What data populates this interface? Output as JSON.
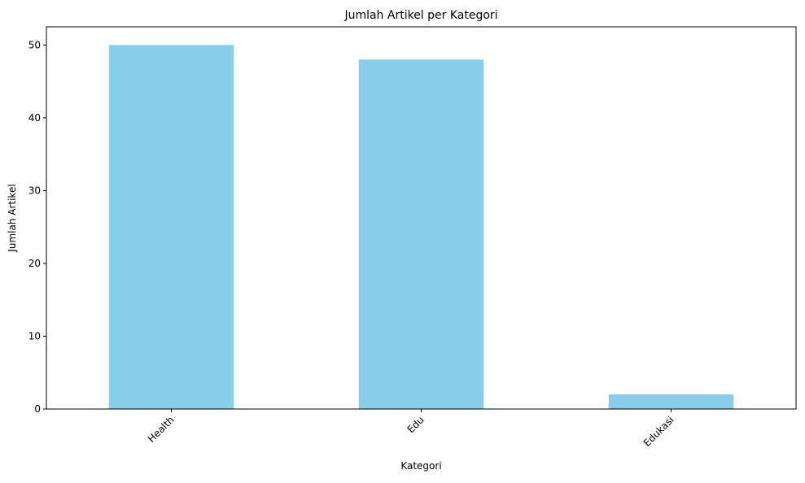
{
  "chart_data": {
    "type": "bar",
    "title": "Jumlah Artikel per Kategori",
    "xlabel": "Kategori",
    "ylabel": "Jumlah Artikel",
    "categories": [
      "Health",
      "Edu",
      "Edukasi"
    ],
    "values": [
      50,
      48,
      2
    ],
    "ylim": [
      0,
      52.5
    ],
    "yticks": [
      0,
      10,
      20,
      30,
      40,
      50
    ],
    "xtick_rotation": 45,
    "bar_color": "#87CEEB",
    "grid": false,
    "legend": false
  }
}
